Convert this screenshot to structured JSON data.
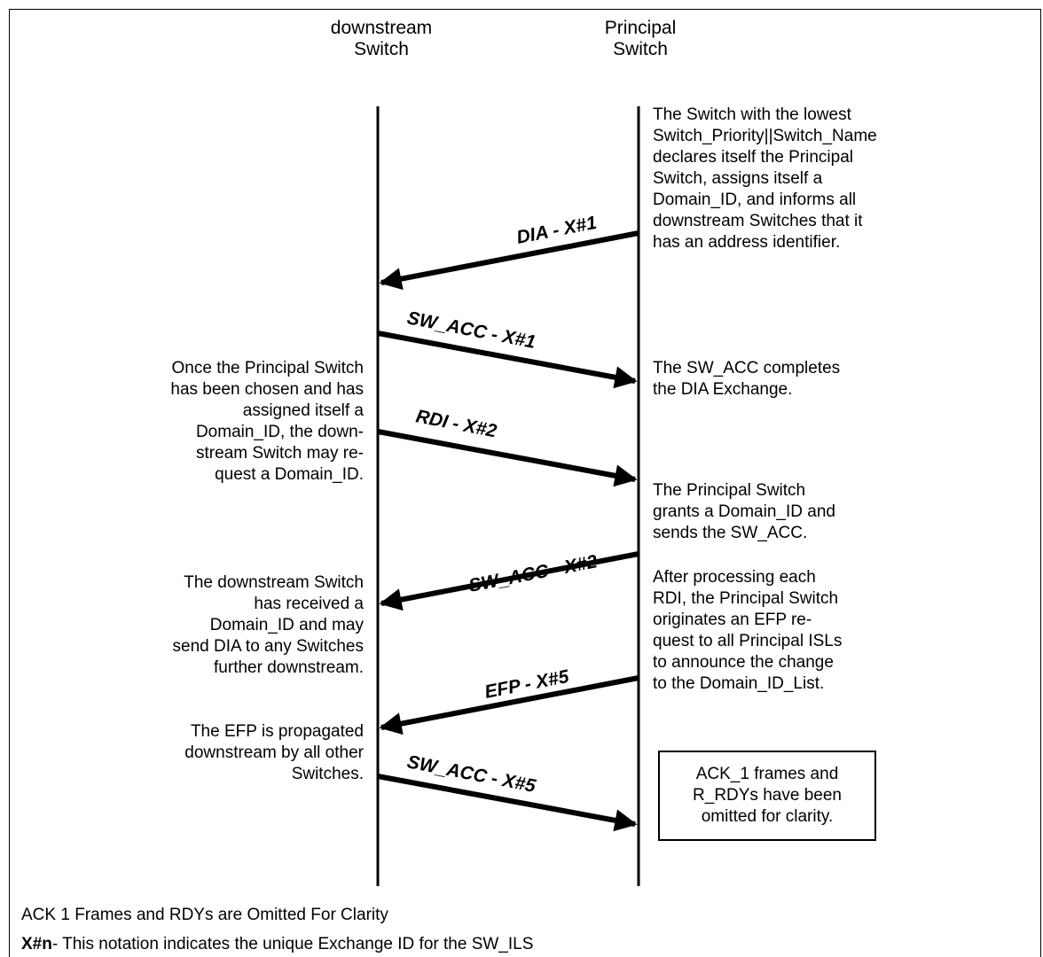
{
  "header": {
    "top_fragment": "_ ... "
  },
  "lanes": {
    "downstream": [
      "downstream",
      "Switch"
    ],
    "principal": [
      "Principal",
      "Switch"
    ]
  },
  "messages": [
    {
      "label": "DIA - X#1",
      "from": "principal",
      "to": "downstream"
    },
    {
      "label": "SW_ACC - X#1",
      "from": "downstream",
      "to": "principal"
    },
    {
      "label": "RDI - X#2",
      "from": "downstream",
      "to": "principal"
    },
    {
      "label": "SW_ACC - X#2",
      "from": "principal",
      "to": "downstream"
    },
    {
      "label": "EFP - X#5",
      "from": "principal",
      "to": "downstream"
    },
    {
      "label": "SW_ACC - X#5",
      "from": "downstream",
      "to": "principal"
    }
  ],
  "right_notes": [
    [
      "The Switch with the lowest",
      "Switch_Priority||Switch_Name",
      "declares itself the Principal",
      "Switch, assigns itself a",
      "Domain_ID, and informs all",
      "downstream Switches that it",
      "has an address identifier."
    ],
    [
      "The SW_ACC completes",
      "the DIA Exchange."
    ],
    [
      "The Principal Switch",
      "grants a Domain_ID and",
      "sends the SW_ACC."
    ],
    [
      "After processing each",
      "RDI, the Principal Switch",
      "originates an EFP re-",
      "quest to all Principal ISLs",
      "to announce the change",
      "to the Domain_ID_List."
    ]
  ],
  "left_notes": [
    [
      "Once the Principal Switch",
      "has been chosen and has",
      "assigned itself a",
      "Domain_ID, the down-",
      "stream Switch may re-",
      "quest a Domain_ID."
    ],
    [
      "The downstream Switch",
      "has received a",
      "Domain_ID and may",
      "send DIA to any Switches",
      "further downstream."
    ],
    [
      "The EFP is propagated",
      "downstream by all other",
      "Switches."
    ]
  ],
  "box_note": [
    "ACK_1 frames and",
    "R_RDYs have been",
    "omitted for clarity."
  ],
  "footer": {
    "line1": "ACK 1 Frames and RDYs are Omitted For Clarity",
    "line2_bold": "X#n",
    "line2_rest": "- This notation indicates the unique Exchange ID for the SW_ILS"
  }
}
